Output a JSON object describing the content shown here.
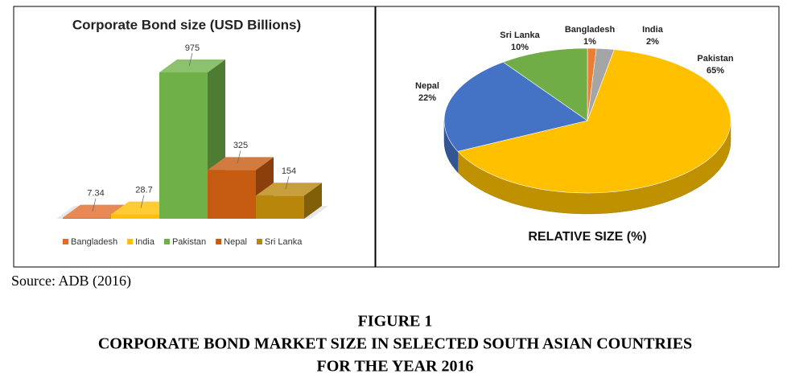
{
  "chart_data": [
    {
      "type": "bar",
      "title": "Corporate Bond size (USD Billions)",
      "categories": [
        "Bangladesh",
        "India",
        "Pakistan",
        "Nepal",
        "Sri Lanka"
      ],
      "values": [
        7.34,
        28.7,
        975,
        325,
        154
      ],
      "colors": [
        "#e06c2b",
        "#ffc000",
        "#6fb148",
        "#c55a11",
        "#b8860b"
      ],
      "legend": "bottom"
    },
    {
      "type": "pie",
      "title": "RELATIVE SIZE (%)",
      "categories": [
        "Bangladesh",
        "India",
        "Pakistan",
        "Nepal",
        "Sri Lanka"
      ],
      "values": [
        1,
        2,
        65,
        22,
        10
      ],
      "value_labels": [
        "1%",
        "2%",
        "65%",
        "22%",
        "10%"
      ],
      "colors": [
        "#ed7d31",
        "#a5a5a5",
        "#ffc000",
        "#4472c4",
        "#70ad47"
      ]
    }
  ],
  "source": "Source: ADB (2016)",
  "caption": {
    "label": "FIGURE 1",
    "lines": [
      "CORPORATE BOND MARKET SIZE IN SELECTED SOUTH ASIAN COUNTRIES",
      "FOR THE YEAR 2016"
    ]
  }
}
